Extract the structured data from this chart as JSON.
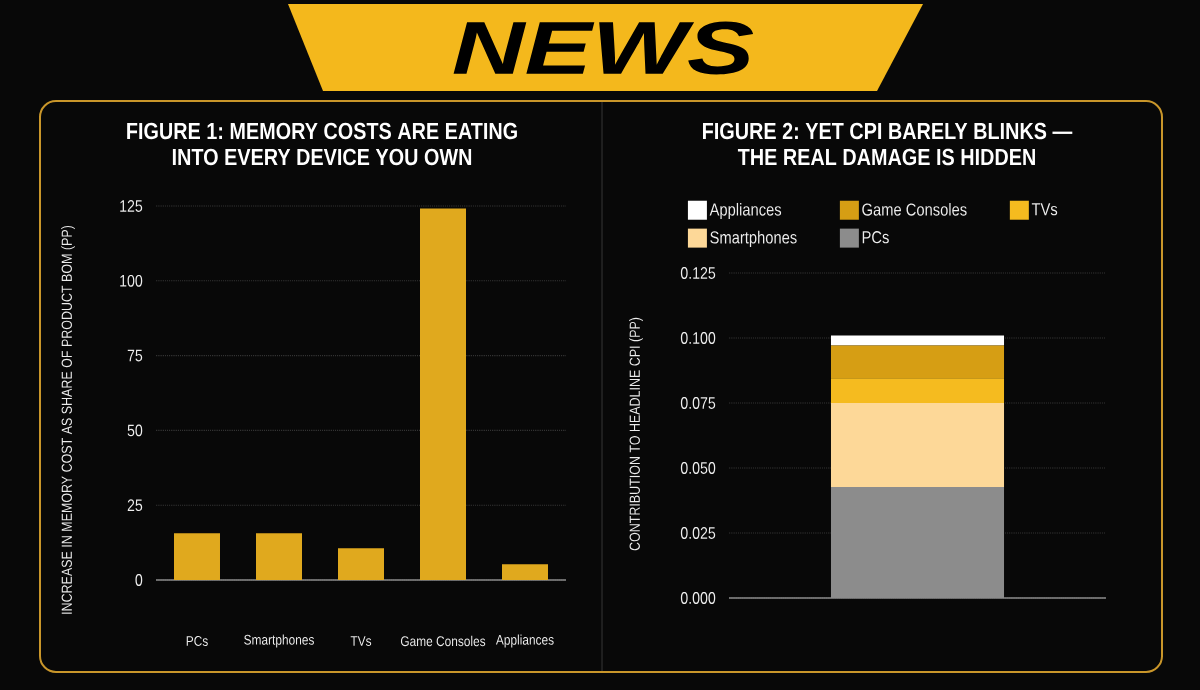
{
  "chart_data": [
    {
      "type": "other",
      "title": "NEWS"
    },
    {
      "type": "bar",
      "title": "FIGURE 1: MEMORY COSTS ARE EATING INTO EVERY DEVICE YOU OWN",
      "ylabel": "INCREASE IN MEMORY COST AS SHARE OF PRODUCT BOM (PP)",
      "categories": [
        "PCs",
        "Smartphones",
        "TVs",
        "Game Consoles",
        "Appliances"
      ],
      "values": [
        15.6,
        15.6,
        10.6,
        124.2,
        5.3
      ],
      "color": "#e0a91e",
      "ylim": [
        0,
        125
      ],
      "yticks": [
        0,
        25,
        50,
        75,
        100,
        125
      ],
      "grid": "y"
    },
    {
      "type": "bar",
      "title": "FIGURE 2: YET CPI BARELY BLINKS — THE REAL DAMAGE IS HIDDEN",
      "ylabel": "CONTRIBUTION TO HEADLINE CPI (PP)",
      "categories": [
        null
      ],
      "stacked": true,
      "series": [
        {
          "name": "PCs",
          "color": "#8c8c8c",
          "values": [
            0.0427
          ]
        },
        {
          "name": "Smartphones",
          "color": "#fdd898",
          "values": [
            0.0323
          ]
        },
        {
          "name": "TVs",
          "color": "#f5bb1f",
          "values": [
            0.0095
          ]
        },
        {
          "name": "Game Consoles",
          "color": "#d69e14",
          "values": [
            0.0126
          ]
        },
        {
          "name": "Appliances",
          "color": "#ffffff",
          "values": [
            0.0039
          ]
        }
      ],
      "ylim": [
        0,
        0.125
      ],
      "yticks": [
        {
          "value": 0,
          "label": "0.000"
        },
        0.025,
        {
          "value": 0.05,
          "label": "0.050"
        },
        0.075,
        {
          "value": 0.1,
          "label": "0.100"
        },
        0.125
      ],
      "grid": "y",
      "legend": "top"
    }
  ]
}
